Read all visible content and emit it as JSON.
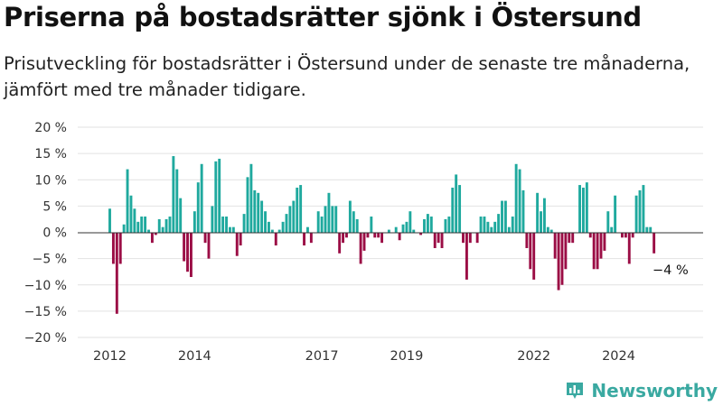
{
  "title": "Priserna på bostadsrätter sjönk i Östersund",
  "subtitle": "Prisutveckling för bostadsrätter i Östersund under de senaste tre månaderna, jämfört med tre månader tidigare.",
  "brand": "Newsworthy",
  "colors": {
    "positive": "#1fa99e",
    "negative": "#9b0d45",
    "brand": "#3aa9a1"
  },
  "chart_data": {
    "type": "bar",
    "ylim": [
      -20,
      20
    ],
    "yticks": [
      20,
      15,
      10,
      5,
      0,
      -5,
      -10,
      -15,
      -20
    ],
    "ytick_labels": [
      "20 %",
      "15 %",
      "10 %",
      "5 %",
      "0 %",
      "−5 %",
      "−10 %",
      "−15 %",
      "−20 %"
    ],
    "xticks": [
      {
        "label": "2012",
        "year": 2012
      },
      {
        "label": "2014",
        "year": 2014
      },
      {
        "label": "2017",
        "year": 2017
      },
      {
        "label": "2019",
        "year": 2019
      },
      {
        "label": "2022",
        "year": 2022
      },
      {
        "label": "2024",
        "year": 2024
      }
    ],
    "x_start": "2012-01",
    "annotation": "−4 %",
    "values": [
      4.5,
      -6,
      -15.5,
      -6,
      1.5,
      12,
      7,
      4.5,
      2,
      3,
      3,
      0.5,
      -2,
      -0.5,
      2.5,
      1,
      2.5,
      3,
      14.5,
      12,
      6.5,
      -5.5,
      -7.5,
      -8.5,
      4,
      9.5,
      13,
      -2,
      -5,
      5,
      13.5,
      14,
      3,
      3,
      1,
      1,
      -4.5,
      -2.5,
      3.5,
      10.5,
      13,
      8,
      7.5,
      6,
      4,
      2,
      0.5,
      -2.5,
      0.5,
      2,
      3.5,
      5,
      6,
      8.5,
      9,
      -2.5,
      1,
      -2,
      0,
      4,
      3,
      5,
      7.5,
      5,
      5,
      -4,
      -2,
      -1,
      6,
      4,
      2.5,
      -6,
      -3.5,
      -1,
      3,
      -1,
      -1,
      -2,
      0,
      0.5,
      0,
      1,
      -1.5,
      1.5,
      2,
      4,
      0.5,
      0,
      -0.5,
      2.5,
      3.5,
      3,
      -3,
      -2,
      -3,
      2.5,
      3,
      8.5,
      11,
      9,
      -2,
      -9,
      -2,
      0,
      -2,
      3,
      3,
      2,
      1,
      2,
      3.5,
      6,
      6,
      1,
      3,
      13,
      12,
      8,
      -3,
      -7,
      -9,
      7.5,
      4,
      6.5,
      1,
      0.5,
      -5,
      -11,
      -10,
      -7,
      -2,
      -2,
      0,
      9,
      8.5,
      9.5,
      -1,
      -7,
      -7,
      -5,
      -3.5,
      4,
      1,
      7,
      0,
      -1,
      -1,
      -6,
      -1,
      7,
      8,
      9,
      1,
      1,
      -4
    ]
  }
}
